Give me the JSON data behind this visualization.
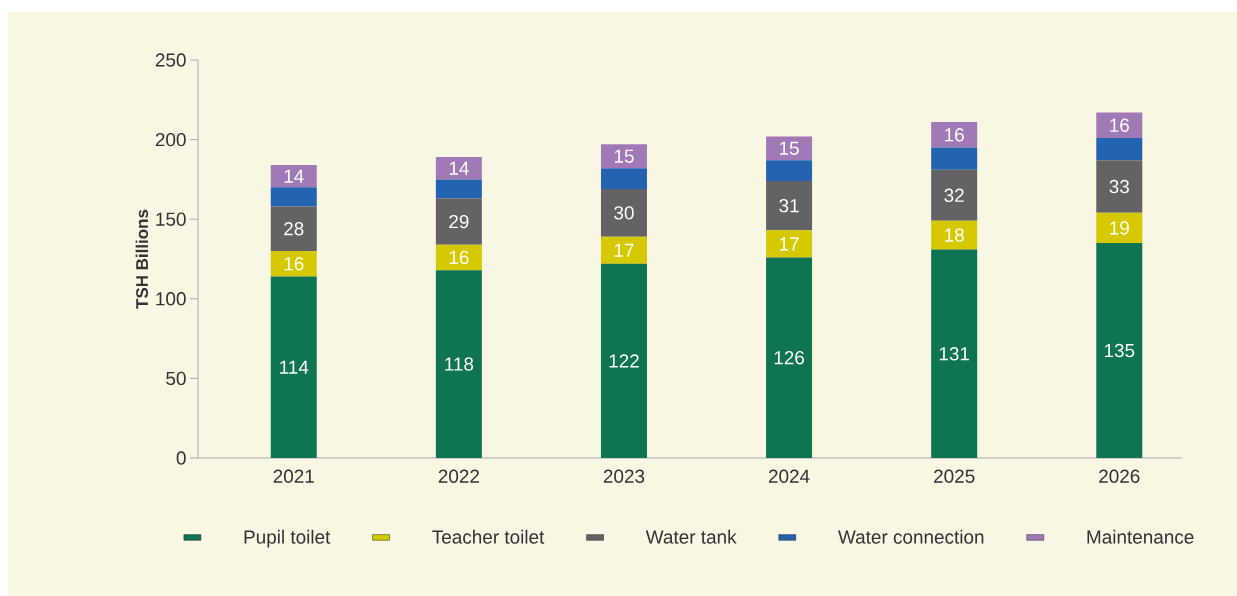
{
  "chart_data": {
    "type": "bar",
    "stacked": true,
    "ylabel": "TSH Billions",
    "categories": [
      "2021",
      "2022",
      "2023",
      "2024",
      "2025",
      "2026"
    ],
    "series": [
      {
        "name": "Pupil toilet",
        "color": "#0e7452",
        "values": [
          114,
          118,
          122,
          126,
          131,
          135
        ],
        "value_labels": [
          "114",
          "118",
          "122",
          "126",
          "131",
          "135"
        ]
      },
      {
        "name": "Teacher toilet",
        "color": "#d6c900",
        "values": [
          16,
          16,
          17,
          17,
          18,
          19
        ],
        "value_labels": [
          "16",
          "16",
          "17",
          "17",
          "18",
          "19"
        ]
      },
      {
        "name": "Water tank",
        "color": "#636366",
        "values": [
          28,
          29,
          30,
          31,
          32,
          33
        ],
        "value_labels": [
          "28",
          "29",
          "30",
          "31",
          "32",
          "33"
        ]
      },
      {
        "name": "Water connection",
        "color": "#2463b0",
        "values": [
          12,
          12,
          13,
          13,
          14,
          14
        ],
        "value_labels": [
          null,
          null,
          null,
          null,
          null,
          null
        ]
      },
      {
        "name": "Maintenance",
        "color": "#a07ab6",
        "values": [
          14,
          14,
          15,
          15,
          16,
          16
        ],
        "value_labels": [
          "14",
          "14",
          "15",
          "15",
          "16",
          "16"
        ]
      }
    ],
    "ylim": [
      0,
      250
    ],
    "yticks": [
      0,
      50,
      100,
      150,
      200,
      250
    ],
    "grid": false,
    "legend": "bottom"
  }
}
